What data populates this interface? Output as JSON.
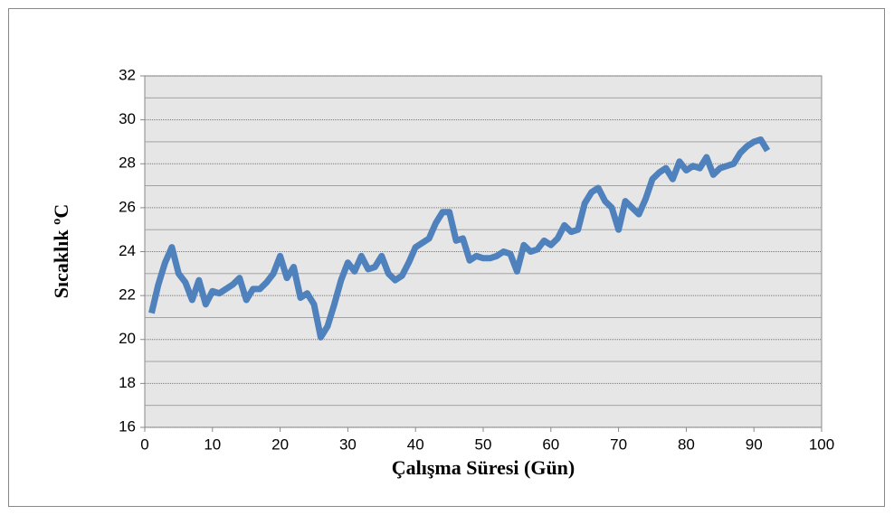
{
  "chart_data": {
    "type": "line",
    "xlabel": "Çalışma Süresi (Gün)",
    "ylabel": "Sıcaklık ºC",
    "x": [
      1,
      2,
      3,
      4,
      5,
      6,
      7,
      8,
      9,
      10,
      11,
      12,
      13,
      14,
      15,
      16,
      17,
      18,
      19,
      20,
      21,
      22,
      23,
      24,
      25,
      26,
      27,
      28,
      29,
      30,
      31,
      32,
      33,
      34,
      35,
      36,
      37,
      38,
      39,
      40,
      41,
      42,
      43,
      44,
      45,
      46,
      47,
      48,
      49,
      50,
      51,
      52,
      53,
      54,
      55,
      56,
      57,
      58,
      59,
      60,
      61,
      62,
      63,
      64,
      65,
      66,
      67,
      68,
      69,
      70,
      71,
      72,
      73,
      74,
      75,
      76,
      77,
      78,
      79,
      80,
      81,
      82,
      83,
      84,
      85,
      86,
      87,
      88,
      89,
      90,
      91,
      92
    ],
    "series": [
      {
        "name": null,
        "color": "#4f81bd",
        "values": [
          21.2,
          22.5,
          23.5,
          24.2,
          23.0,
          22.6,
          21.8,
          22.7,
          21.6,
          22.2,
          22.1,
          22.3,
          22.5,
          22.8,
          21.8,
          22.3,
          22.3,
          22.6,
          23.0,
          23.8,
          22.8,
          23.3,
          21.9,
          22.1,
          21.6,
          20.1,
          20.6,
          21.6,
          22.7,
          23.5,
          23.1,
          23.8,
          23.2,
          23.3,
          23.8,
          23.0,
          22.7,
          22.9,
          23.5,
          24.2,
          24.4,
          24.6,
          25.3,
          25.8,
          25.8,
          24.5,
          24.6,
          23.6,
          23.8,
          23.7,
          23.7,
          23.8,
          24.0,
          23.9,
          23.1,
          24.3,
          24.0,
          24.1,
          24.5,
          24.3,
          24.6,
          25.2,
          24.9,
          25.0,
          26.2,
          26.7,
          26.9,
          26.3,
          26.0,
          25.0,
          26.3,
          26.0,
          25.7,
          26.4,
          27.3,
          27.6,
          27.8,
          27.3,
          28.1,
          27.7,
          27.9,
          27.8,
          28.3,
          27.5,
          27.8,
          27.9,
          28.0,
          28.5,
          28.8,
          29.0,
          29.1,
          28.6
        ]
      }
    ],
    "xlim": [
      0,
      100
    ],
    "xticks": [
      0,
      10,
      20,
      30,
      40,
      50,
      60,
      70,
      80,
      90,
      100
    ],
    "ylim": [
      16,
      32
    ],
    "yticks": [
      16,
      18,
      20,
      22,
      24,
      26,
      28,
      30,
      32
    ],
    "minor_yticks": [
      17,
      19,
      21,
      23,
      25,
      27,
      29,
      31
    ],
    "grid": true
  }
}
